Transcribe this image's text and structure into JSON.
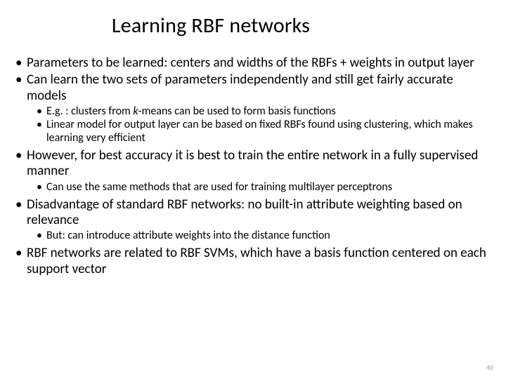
{
  "title": "Learning RBF networks",
  "bullets": [
    {
      "text": "Parameters to be learned: centers and widths of the RBFs + weights in output layer"
    },
    {
      "text": "Can learn the two sets of parameters independently and still get fairly accurate models",
      "sub": [
        {
          "prefix": "E.g. : clusters from ",
          "italic": "k",
          "suffix": "-means can be used to form basis functions"
        },
        {
          "text": "Linear model for output layer can be based on fixed RBFs found using clustering, which makes learning very efficient"
        }
      ]
    },
    {
      "text": "However, for best accuracy it is best to train the entire network in a fully supervised manner",
      "sub": [
        {
          "text": "Can use the same methods that are used for training multilayer perceptrons"
        }
      ]
    },
    {
      "text": "Disadvantage of standard RBF networks: no built-in attribute weighting based on relevance",
      "sub": [
        {
          "text": "But: can introduce attribute weights into the distance function"
        }
      ]
    },
    {
      "text": "RBF networks are related to RBF SVMs, which have a basis function centered on each support vector"
    }
  ],
  "pagenum": "40",
  "colors": {
    "background": "#ffffff",
    "text": "#000000",
    "pagenum": "#a0a0a0"
  },
  "fonts": {
    "title_size_pt": 30,
    "bullet_size_pt": 19,
    "sub_size_pt": 16,
    "pagenum_size_pt": 10,
    "family": "Calibri"
  }
}
